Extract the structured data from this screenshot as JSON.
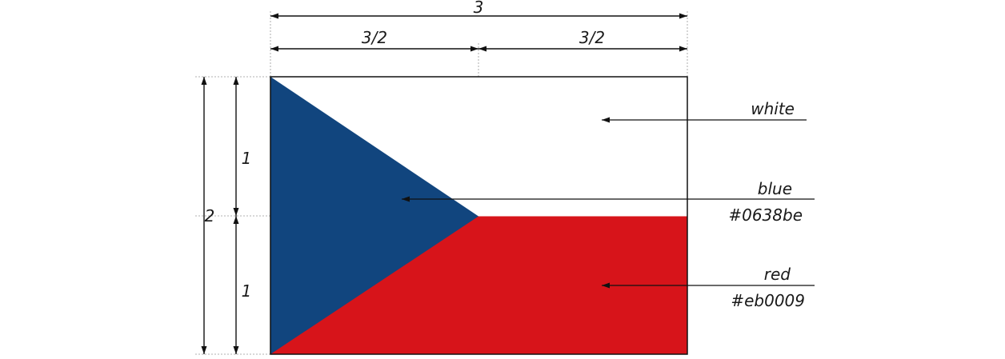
{
  "dimensions": {
    "total_width": "3",
    "half_width_left": "3/2",
    "half_width_right": "3/2",
    "total_height": "2",
    "upper_height": "1",
    "lower_height": "1"
  },
  "callouts": {
    "white": {
      "name": "white"
    },
    "blue": {
      "name": "blue",
      "hex": "#0638be"
    },
    "red": {
      "name": "red",
      "hex": "#eb0009"
    }
  },
  "render_colors": {
    "flag_blue": "#11457e",
    "flag_red": "#d7141a",
    "flag_white": "#ffffff",
    "outline": "#111111"
  }
}
